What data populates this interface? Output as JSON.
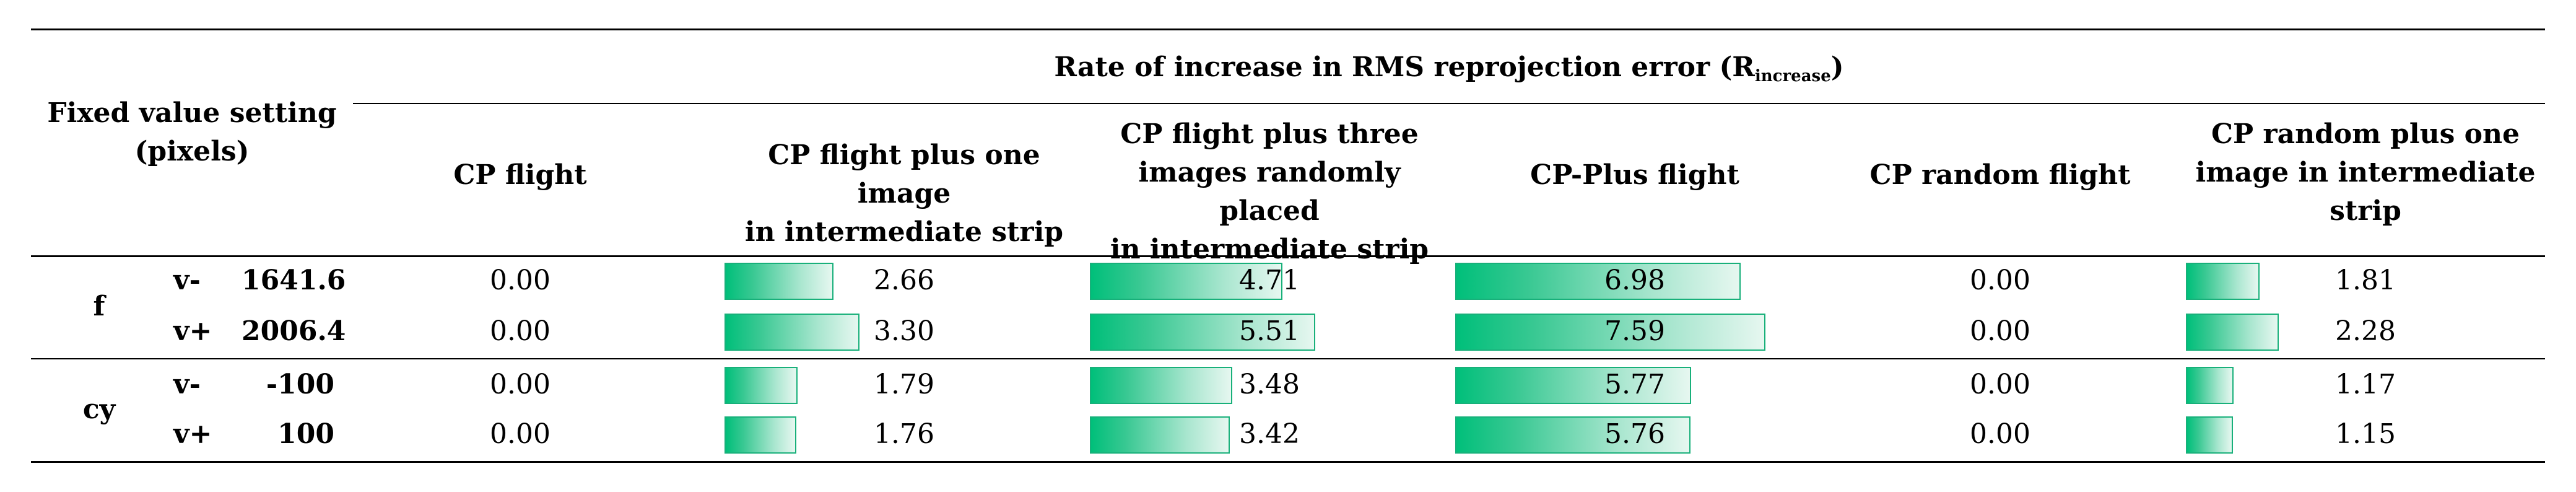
{
  "table": {
    "fixed_header_line1": "Fixed value setting",
    "fixed_header_line2": "(pixels)",
    "group_title_main": "Rate of increase in RMS reprojection error  (R",
    "group_title_sub": "increase",
    "group_title_close": ")",
    "bar_color": "#00bf7a",
    "columns": [
      {
        "lines": [
          "CP flight"
        ]
      },
      {
        "lines": [
          "CP flight plus one image",
          "in intermediate strip"
        ]
      },
      {
        "lines": [
          "CP flight plus three",
          "images randomly placed",
          "in intermediate strip"
        ]
      },
      {
        "lines": [
          "CP-Plus flight"
        ]
      },
      {
        "lines": [
          "CP random flight"
        ]
      },
      {
        "lines": [
          "CP random plus one",
          "image in intermediate",
          "strip"
        ]
      }
    ],
    "groups": [
      {
        "param": "f"
      },
      {
        "param": "cy"
      }
    ],
    "rows": [
      {
        "variant": "v-",
        "fixed": "1641.6",
        "values": [
          "0.00",
          "2.66",
          "4.71",
          "6.98",
          "0.00",
          "1.81"
        ]
      },
      {
        "variant": "v+",
        "fixed": "2006.4",
        "values": [
          "0.00",
          "3.30",
          "5.51",
          "7.59",
          "0.00",
          "2.28"
        ]
      },
      {
        "variant": "v-",
        "fixed": "-100",
        "values": [
          "0.00",
          "1.79",
          "3.48",
          "5.77",
          "0.00",
          "1.17"
        ]
      },
      {
        "variant": "v+",
        "fixed": "100",
        "values": [
          "0.00",
          "1.76",
          "3.42",
          "5.76",
          "0.00",
          "1.15"
        ]
      }
    ]
  }
}
